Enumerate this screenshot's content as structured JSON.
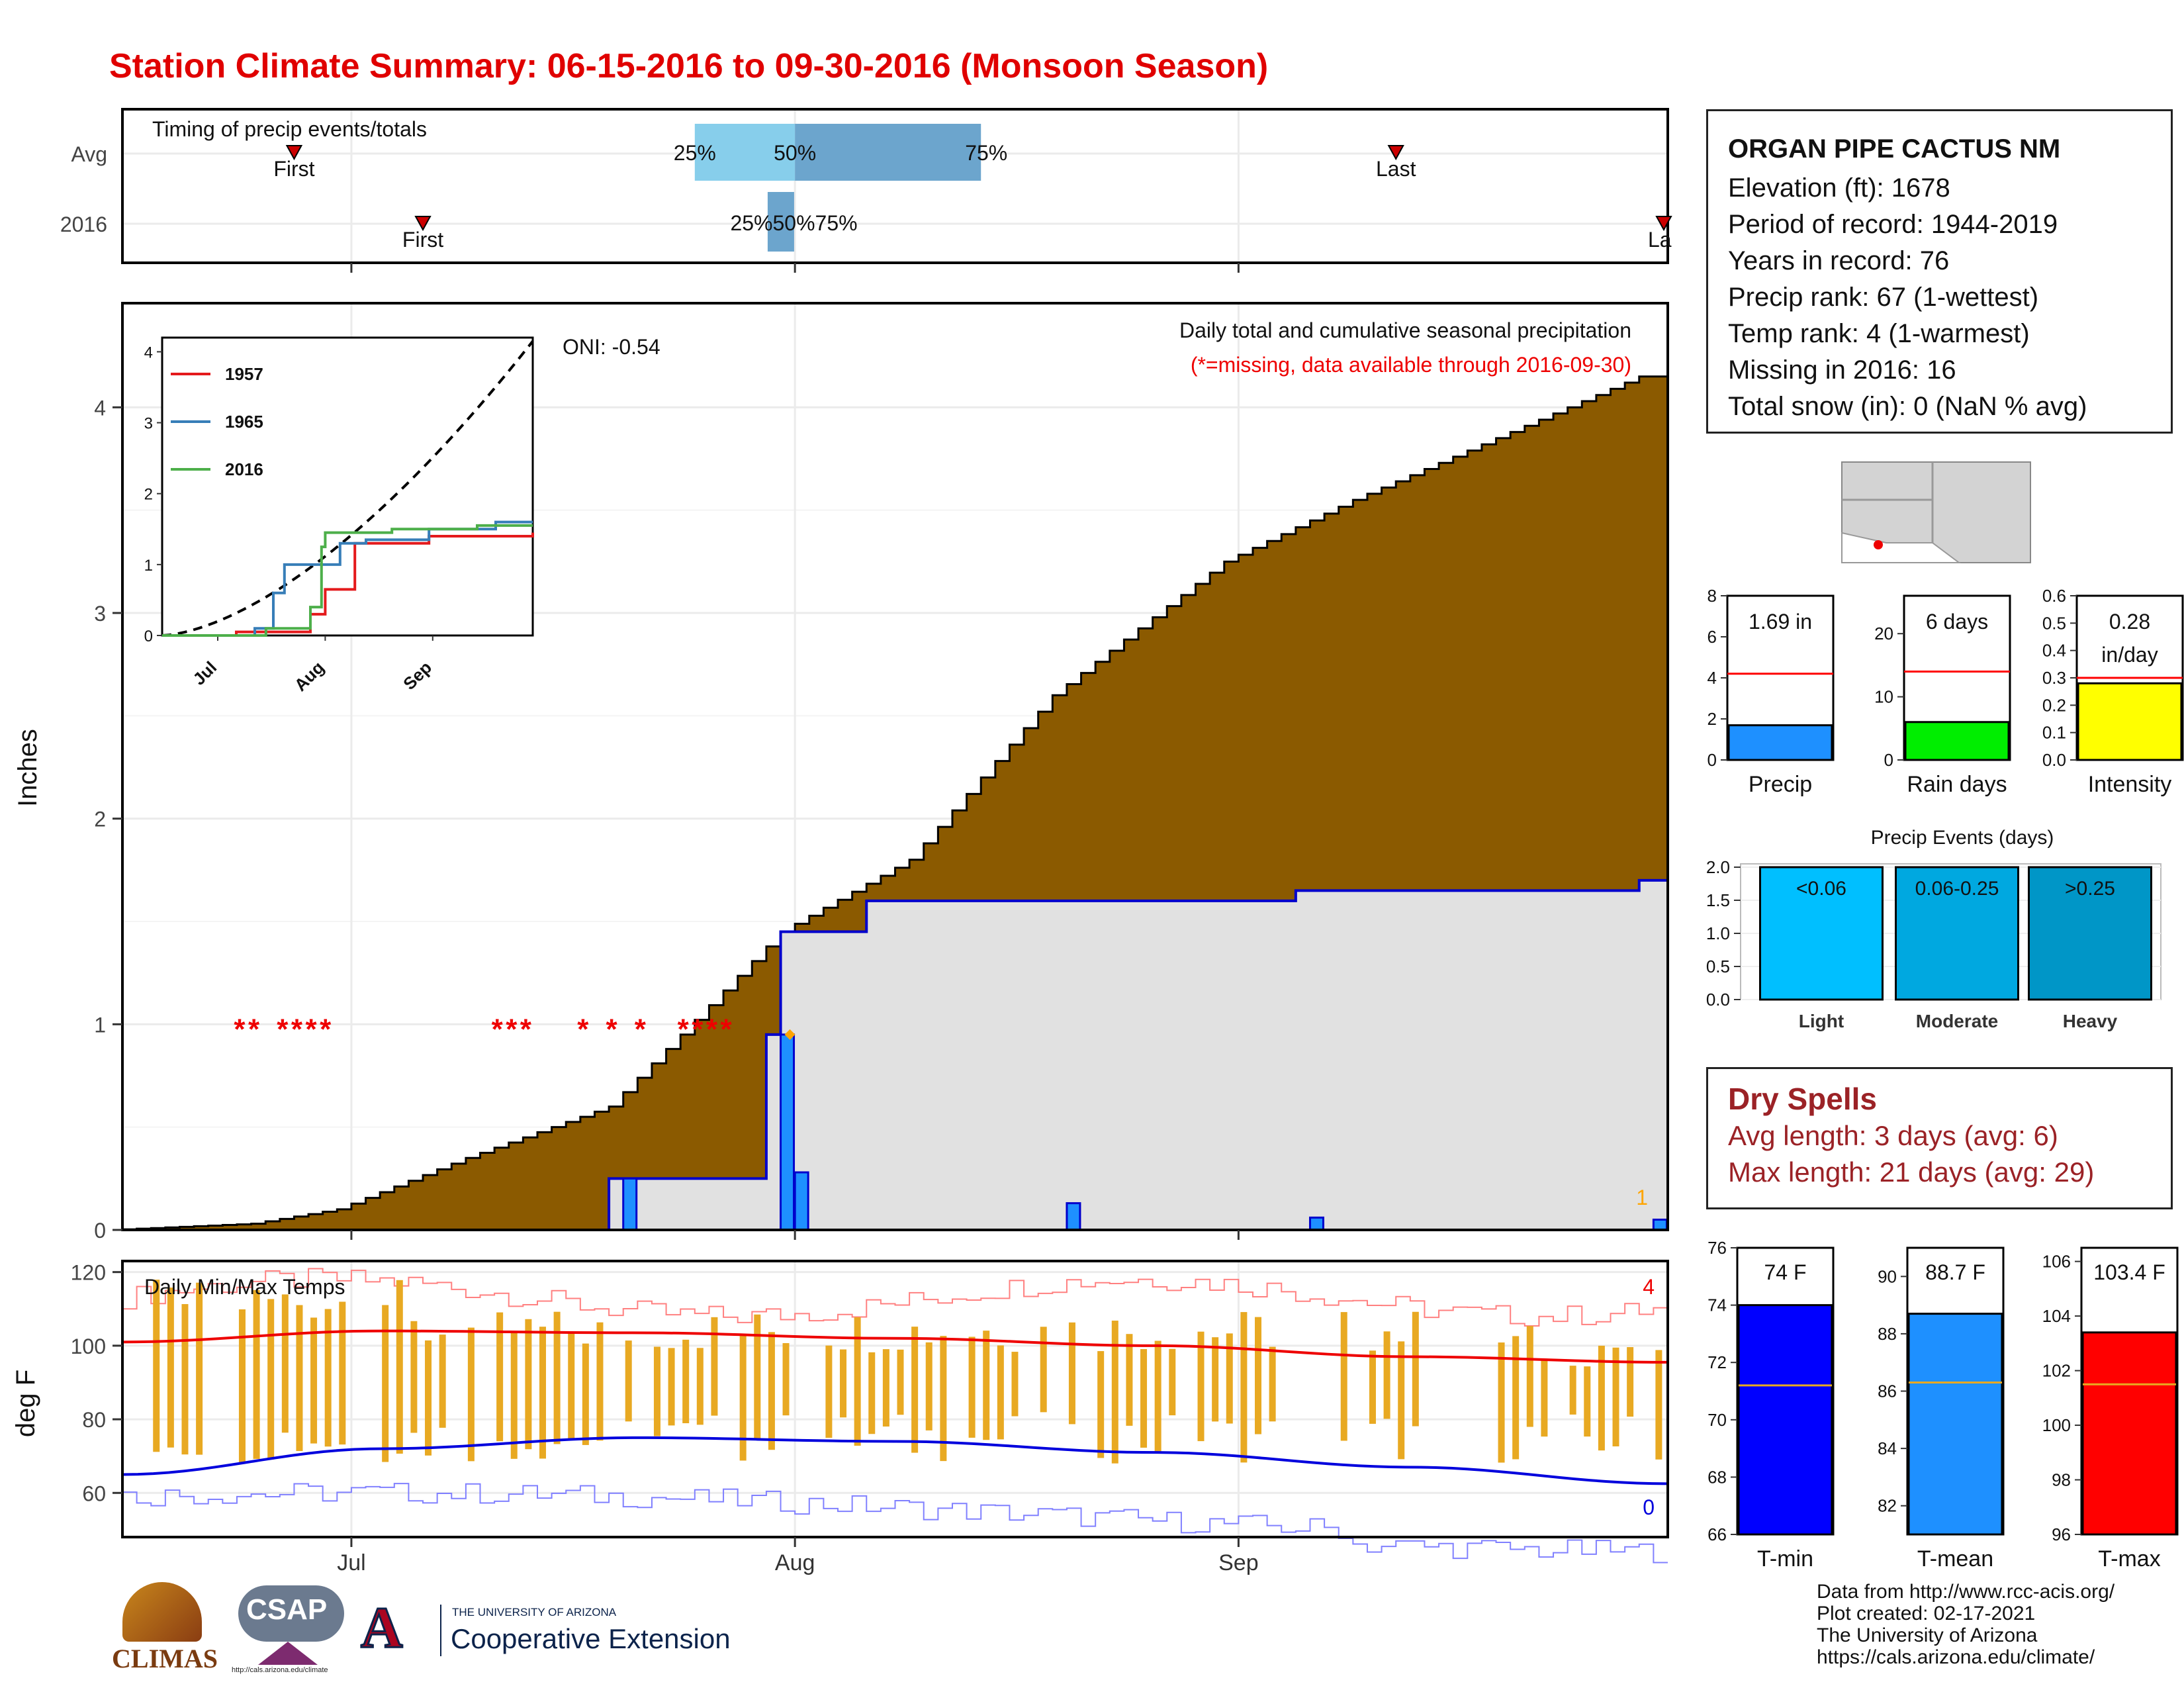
{
  "page": {
    "title": "Station Climate Summary: 06-15-2016 to 09-30-2016 (Monsoon Season)"
  },
  "timing_panel": {
    "label": "Timing of precip events/totals",
    "rows": [
      "Avg",
      "2016"
    ],
    "avg": {
      "first_label": "First",
      "last_label": "Last",
      "q25": "25%",
      "q50": "50%",
      "q75": "75%"
    },
    "y2016": {
      "first_label": "First",
      "last_label": "La",
      "q_label": "25%50%75%"
    },
    "colors": {
      "light": "#87ceeb",
      "mid": "#6ca5cd",
      "marker": "#cc0000"
    }
  },
  "main_panel": {
    "ylabel": "Inches",
    "oni": "ONI: -0.54",
    "subtitle": "Daily total and cumulative seasonal precipitation",
    "missing_note": "(*=missing, data available through 2016-09-30)",
    "end_label": "1",
    "x_ticks": [
      "Jul",
      "Aug",
      "Sep"
    ],
    "y_ticks": [
      "0",
      "1",
      "2",
      "3",
      "4"
    ],
    "colors": {
      "avg_fill": "#8b5a00",
      "year_fill": "#e1e1e1",
      "bars": "#1e90ff",
      "missing": "#ee0000"
    }
  },
  "inset": {
    "legend": [
      "1957",
      "1965",
      "2016"
    ],
    "legend_colors": [
      "#e41a1c",
      "#377eb8",
      "#4daf4a"
    ],
    "x_ticks": [
      "Jul",
      "Aug",
      "Sep"
    ],
    "y_ticks": [
      "0",
      "1",
      "2",
      "3",
      "4"
    ]
  },
  "temp_panel": {
    "label": "Daily Min/Max Temps",
    "ylabel": "deg F",
    "y_ticks": [
      "120",
      "100",
      "80",
      "60"
    ],
    "max_count": "4",
    "min_count": "0",
    "colors": {
      "max": "#ee0000",
      "min": "#0000dd",
      "bars": "#e8a922"
    }
  },
  "station": {
    "name": "ORGAN PIPE CACTUS NM",
    "lines": [
      "Elevation (ft): 1678",
      "Period of record: 1944-2019",
      "Years in record: 76",
      "Precip rank: 67 (1-wettest)",
      "Temp rank: 4 (1-warmest)",
      "Missing in 2016: 16",
      "Total snow (in): 0 (NaN % avg)"
    ]
  },
  "mini_bars": [
    {
      "label": "Precip",
      "value_text": "1.69 in",
      "value": 1.69,
      "avg": 4.2,
      "ymax": 8,
      "ticks": [
        "0",
        "2",
        "4",
        "6",
        "8"
      ],
      "color": "#1e90ff"
    },
    {
      "label": "Rain days",
      "value_text": "6 days",
      "value": 6,
      "avg": 14,
      "ymax": 26,
      "ticks": [
        "0",
        "10",
        "20"
      ],
      "color": "#00ee00"
    },
    {
      "label": "Intensity",
      "value_text": "0.28",
      "value_text2": "in/day",
      "value": 0.28,
      "avg": 0.3,
      "ymax": 0.6,
      "ticks": [
        "0.0",
        "0.1",
        "0.2",
        "0.3",
        "0.4",
        "0.5",
        "0.6"
      ],
      "color": "#ffff00"
    }
  ],
  "events": {
    "title": "Precip Events (days)",
    "categories": [
      "Light",
      "Moderate",
      "Heavy"
    ],
    "bar_labels": [
      "<0.06",
      "0.06-0.25",
      ">0.25"
    ],
    "ticks": [
      "0.0",
      "0.5",
      "1.0",
      "1.5",
      "2.0"
    ],
    "colors": [
      "#00bfff",
      "#00a8e0",
      "#0096c7"
    ]
  },
  "dry_spells": {
    "title": "Dry Spells",
    "avg_line": "Avg length: 3 days (avg: 6)",
    "max_line": "Max length: 21 days (avg: 29)"
  },
  "temp_bars": [
    {
      "label": "T-min",
      "value_text": "74 F",
      "value": 74,
      "avg": 71.2,
      "ymin": 66,
      "ymax": 76,
      "ticks": [
        "66",
        "68",
        "70",
        "72",
        "74",
        "76"
      ],
      "color": "#0000ff"
    },
    {
      "label": "T-mean",
      "value_text": "88.7 F",
      "value": 88.7,
      "avg": 86.3,
      "ymin": 81,
      "ymax": 91,
      "ticks": [
        "82",
        "84",
        "86",
        "88",
        "90"
      ],
      "color": "#1e90ff"
    },
    {
      "label": "T-max",
      "value_text": "103.4 F",
      "value": 103.4,
      "avg": 101.5,
      "ymin": 96,
      "ymax": 106.5,
      "ticks": [
        "96",
        "98",
        "100",
        "102",
        "104",
        "106"
      ],
      "color": "#ff0000"
    }
  ],
  "footer": {
    "lines": [
      "Data from http://www.rcc-acis.org/",
      "Plot created: 02-17-2021",
      "The University of Arizona",
      "https://cals.arizona.edu/climate/"
    ]
  },
  "logos": {
    "climas": "CLIMAS",
    "csap": "CSAP",
    "csap_url": "http://cals.arizona.edu/climate",
    "ua_small": "THE UNIVERSITY OF ARIZONA",
    "ua_big": "Cooperative Extension"
  },
  "chart_data": [
    {
      "type": "area",
      "title": "Daily total and cumulative seasonal precipitation",
      "ylabel": "Inches",
      "x_range": [
        "2016-06-15",
        "2016-09-30"
      ],
      "ylim": [
        0,
        4.5
      ],
      "series": [
        {
          "name": "",
          "x": [
            "06-15",
            "06-25",
            "07-01",
            "07-10",
            "07-20",
            "07-25",
            "08-01",
            "08-10",
            "08-20",
            "09-01",
            "09-10",
            "09-20",
            "09-30"
          ],
          "values": [
            0,
            0.03,
            0.1,
            0.35,
            0.6,
            0.95,
            1.45,
            1.8,
            2.6,
            3.25,
            3.55,
            3.85,
            4.15
          ]
        },
        {
          "name": "2016",
          "x": [
            "06-15",
            "07-20",
            "07-31",
            "08-01",
            "08-07",
            "09-06",
            "09-30"
          ],
          "values": [
            0,
            0.25,
            0.95,
            1.45,
            1.6,
            1.65,
            1.7
          ]
        }
      ],
      "daily_bars": [
        {
          "x": "07-20",
          "value": 0.25
        },
        {
          "x": "07-31",
          "value": 0.95
        },
        {
          "x": "08-01",
          "value": 0.28
        },
        {
          "x": "08-20",
          "value": 0.13
        },
        {
          "x": "09-06",
          "value": 0.06
        },
        {
          "x": "09-30",
          "value": 0.05
        }
      ]
    },
    {
      "type": "line",
      "title": "",
      "ylabel": "",
      "categories": [
        "Jul",
        "Aug",
        "Sep"
      ],
      "ylim": [
        0,
        4
      ],
      "series": [
        {
          "name": "1957",
          "values": [
            0,
            1.3,
            1.45
          ]
        },
        {
          "name": "1965",
          "values": [
            0,
            1.35,
            1.6
          ]
        },
        {
          "name": "2016",
          "values": [
            0,
            1.45,
            1.55
          ]
        }
      ]
    },
    {
      "type": "line",
      "title": "Daily Min/Max Temps",
      "ylabel": "deg F",
      "ylim": [
        48,
        123
      ],
      "series": [
        {
          "name": "",
          "values_avg_max": [
            101,
            104,
            103.5,
            102,
            100,
            97,
            95.5
          ]
        },
        {
          "name": "",
          "values_avg_min": [
            65,
            72,
            75,
            74,
            71,
            67,
            62.5
          ]
        }
      ]
    },
    {
      "type": "bar",
      "title": "Precip Events (days)",
      "categories": [
        "Light",
        "Moderate",
        "Heavy"
      ],
      "values": [
        2,
        2,
        2
      ],
      "ylim": [
        0,
        2
      ]
    }
  ]
}
